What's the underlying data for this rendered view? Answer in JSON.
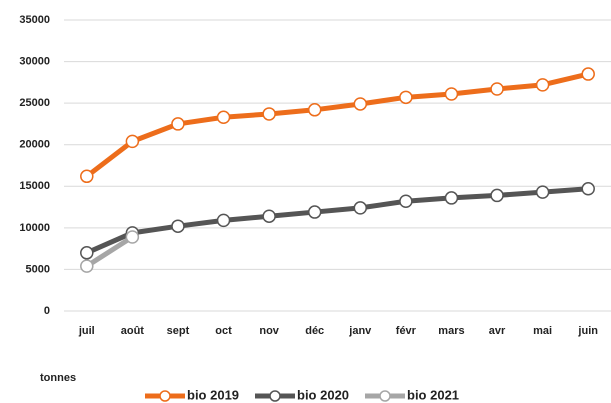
{
  "chart_data": {
    "type": "line",
    "y_label": "tonnes",
    "categories": [
      "juil",
      "août",
      "sept",
      "oct",
      "nov",
      "déc",
      "janv",
      "févr",
      "mars",
      "avr",
      "mai",
      "juin"
    ],
    "series": [
      {
        "name": "bio 2019",
        "color": "#ed6d1b",
        "values": [
          16200,
          20400,
          22500,
          23300,
          23700,
          24200,
          24900,
          25700,
          26100,
          26700,
          27200,
          28500
        ]
      },
      {
        "name": "bio 2020",
        "color": "#555555",
        "values": [
          7000,
          9400,
          10200,
          10900,
          11400,
          11900,
          12400,
          13200,
          13600,
          13900,
          14300,
          14700
        ]
      },
      {
        "name": "bio 2021",
        "color": "#a6a6a6",
        "values": [
          5400,
          8900,
          null,
          null,
          null,
          null,
          null,
          null,
          null,
          null,
          null,
          null
        ]
      }
    ],
    "ylim": [
      0,
      35000
    ],
    "yticks": [
      0,
      5000,
      10000,
      15000,
      20000,
      25000,
      30000,
      35000
    ],
    "grid": true
  }
}
